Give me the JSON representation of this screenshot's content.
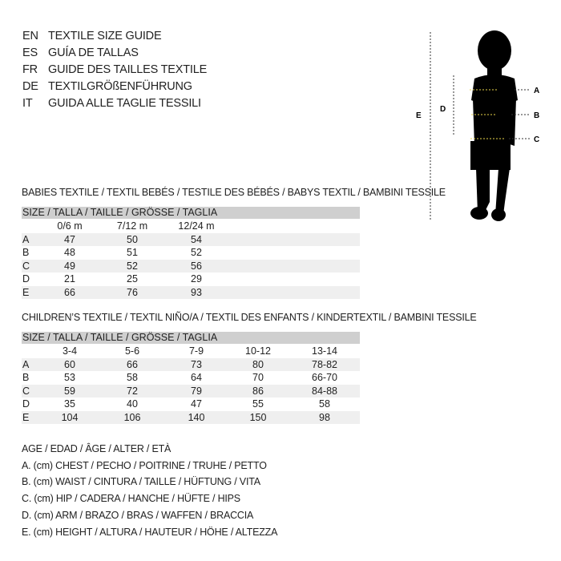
{
  "guide": [
    {
      "code": "EN",
      "text": "TEXTILE SIZE GUIDE"
    },
    {
      "code": "ES",
      "text": "GUÍA DE TALLAS"
    },
    {
      "code": "FR",
      "text": "GUIDE DES TAILLES TEXTILE"
    },
    {
      "code": "DE",
      "text": "TEXTILGRÖßENFÜHRUNG"
    },
    {
      "code": "IT",
      "text": "GUIDA ALLE TAGLIE TESSILI"
    }
  ],
  "babies": {
    "title": "BABIES TEXTILE / TEXTIL BEBÉS / TESTILE DES BÉBÉS / BABYS TEXTIL / BAMBINI TESSILE",
    "header": "SIZE / TALLA / TAILLE / GRÖSSE / TAGLIA",
    "columns": [
      "0/6 m",
      "7/12 m",
      "12/24 m"
    ],
    "rows": [
      {
        "label": "A",
        "values": [
          "47",
          "50",
          "54"
        ]
      },
      {
        "label": "B",
        "values": [
          "48",
          "51",
          "52"
        ]
      },
      {
        "label": "C",
        "values": [
          "49",
          "52",
          "56"
        ]
      },
      {
        "label": "D",
        "values": [
          "21",
          "25",
          "29"
        ]
      },
      {
        "label": "E",
        "values": [
          "66",
          "76",
          "93"
        ]
      }
    ]
  },
  "children": {
    "title": "CHILDREN’S TEXTILE / TEXTIL NIÑO/A / TEXTIL DES ENFANTS / KINDERTEXTIL / BAMBINI TESSILE",
    "header": "SIZE / TALLA / TAILLE / GRÖSSE / TAGLIA",
    "columns": [
      "3-4",
      "5-6",
      "7-9",
      "10-12",
      "13-14"
    ],
    "rows": [
      {
        "label": "A",
        "values": [
          "60",
          "66",
          "73",
          "80",
          "78-82"
        ]
      },
      {
        "label": "B",
        "values": [
          "53",
          "58",
          "64",
          "70",
          "66-70"
        ]
      },
      {
        "label": "C",
        "values": [
          "59",
          "72",
          "79",
          "86",
          "84-88"
        ]
      },
      {
        "label": "D",
        "values": [
          "35",
          "40",
          "47",
          "55",
          "58"
        ]
      },
      {
        "label": "E",
        "values": [
          "104",
          "106",
          "140",
          "150",
          "98"
        ]
      }
    ]
  },
  "legend": [
    "AGE / EDAD / ÂGE / ALTER / ETÀ",
    "A. (cm) CHEST / PECHO / POITRINE / TRUHE / PETTO",
    "B. (cm) WAIST / CINTURA / TAILLE / HÜFTUNG / VITA",
    "C. (cm) HIP / CADERA / HANCHE / HÜFTE / HIPS",
    "D. (cm) ARM / BRAZO / BRAS / WAFFEN / BRACCIA",
    "E. (cm) HEIGHT / ALTURA / HAUTEUR / HÖHE / ALTEZZA"
  ],
  "figure": {
    "labels": {
      "a": "A",
      "b": "B",
      "c": "C",
      "d": "D",
      "e": "E"
    },
    "measure_line_color": "#e8d44a"
  }
}
